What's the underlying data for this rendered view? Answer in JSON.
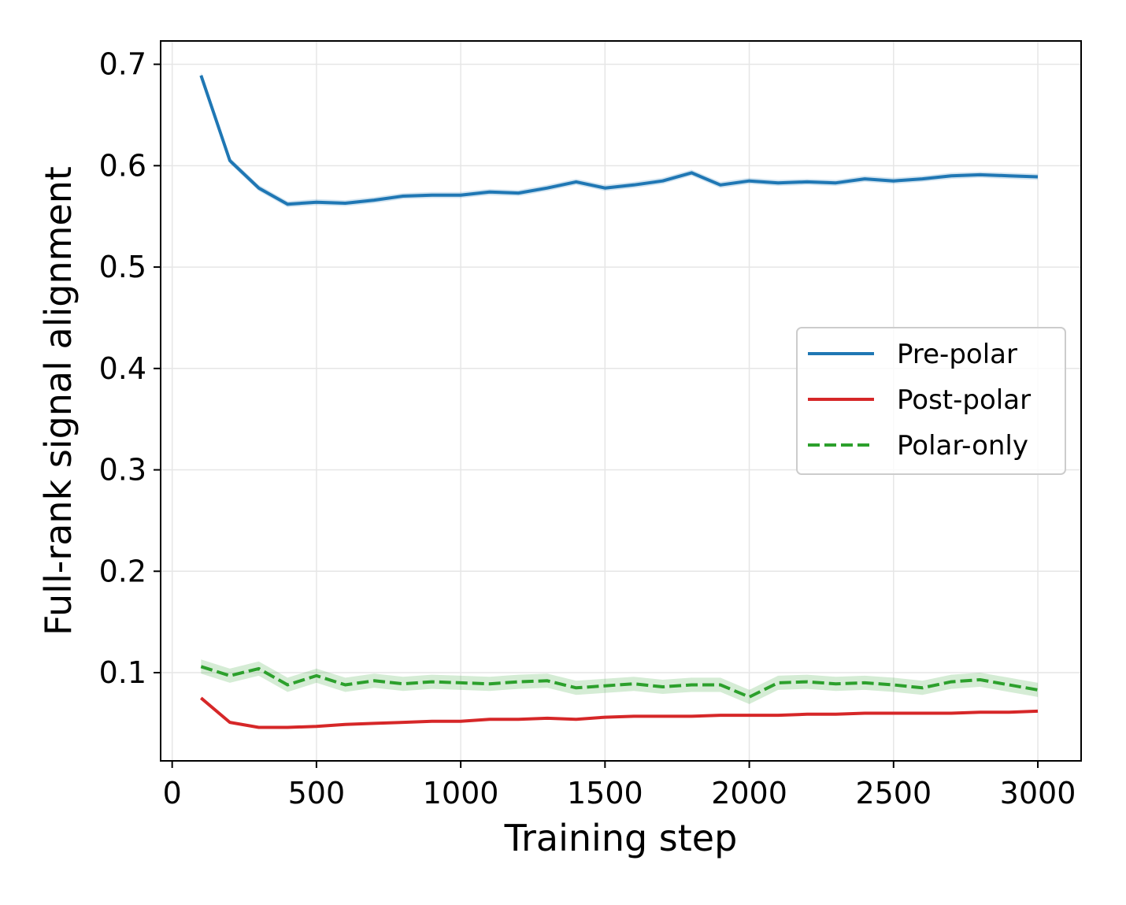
{
  "chart_data": {
    "type": "line",
    "title": "",
    "xlabel": "Training step",
    "ylabel": "Full-rank signal alignment",
    "xlim": [
      -40,
      3150
    ],
    "ylim": [
      0.013,
      0.723
    ],
    "xticks": [
      0,
      500,
      1000,
      1500,
      2000,
      2500,
      3000
    ],
    "xtick_labels": [
      "0",
      "500",
      "1000",
      "1500",
      "2000",
      "2500",
      "3000"
    ],
    "yticks": [
      0.1,
      0.2,
      0.3,
      0.4,
      0.5,
      0.6,
      0.7
    ],
    "ytick_labels": [
      "0.1",
      "0.2",
      "0.3",
      "0.4",
      "0.5",
      "0.6",
      "0.7"
    ],
    "grid": true,
    "legend_position": "center-right",
    "x": [
      100,
      200,
      300,
      400,
      500,
      600,
      700,
      800,
      900,
      1000,
      1100,
      1200,
      1300,
      1400,
      1500,
      1600,
      1700,
      1800,
      1900,
      2000,
      2100,
      2200,
      2300,
      2400,
      2500,
      2600,
      2700,
      2800,
      2900,
      3000
    ],
    "series": [
      {
        "name": "Pre-polar",
        "color": "#1f77b4",
        "dashed": false,
        "values": [
          0.689,
          0.605,
          0.578,
          0.562,
          0.564,
          0.563,
          0.566,
          0.57,
          0.571,
          0.571,
          0.574,
          0.573,
          0.578,
          0.584,
          0.578,
          0.581,
          0.585,
          0.593,
          0.581,
          0.585,
          0.583,
          0.584,
          0.583,
          0.587,
          0.585,
          0.587,
          0.59,
          0.591,
          0.59,
          0.589
        ],
        "band": 0.003
      },
      {
        "name": "Post-polar",
        "color": "#d62728",
        "dashed": false,
        "values": [
          0.075,
          0.051,
          0.046,
          0.046,
          0.047,
          0.049,
          0.05,
          0.051,
          0.052,
          0.052,
          0.054,
          0.054,
          0.055,
          0.054,
          0.056,
          0.057,
          0.057,
          0.057,
          0.058,
          0.058,
          0.058,
          0.059,
          0.059,
          0.06,
          0.06,
          0.06,
          0.06,
          0.061,
          0.061,
          0.062
        ],
        "band": 0.001
      },
      {
        "name": "Polar-only",
        "color": "#2ca02c",
        "dashed": true,
        "values": [
          0.106,
          0.097,
          0.104,
          0.088,
          0.097,
          0.088,
          0.092,
          0.089,
          0.091,
          0.09,
          0.089,
          0.091,
          0.092,
          0.085,
          0.087,
          0.089,
          0.086,
          0.088,
          0.088,
          0.076,
          0.09,
          0.091,
          0.089,
          0.09,
          0.088,
          0.085,
          0.091,
          0.093,
          0.088,
          0.083
        ],
        "band": 0.007
      }
    ]
  }
}
